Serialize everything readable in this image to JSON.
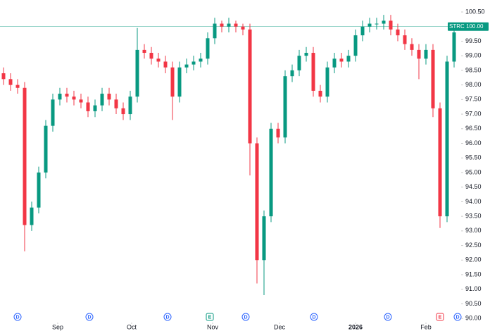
{
  "chart_data": {
    "type": "candlestick",
    "xlim": [
      -0.5,
      65
    ],
    "xticks": [
      {
        "value": 7.7,
        "label": "Sep"
      },
      {
        "value": 18.2,
        "label": "Oct"
      },
      {
        "value": 29.7,
        "label": "Nov"
      },
      {
        "value": 39.2,
        "label": "Dec"
      },
      {
        "value": 50,
        "label": "2026"
      },
      {
        "value": 60,
        "label": "Feb"
      }
    ],
    "x": [
      0,
      1,
      2,
      3,
      4,
      5,
      6,
      7,
      8,
      9,
      10,
      11,
      12,
      13,
      14,
      15,
      16,
      17,
      18,
      19,
      20,
      21,
      22,
      23,
      24,
      25,
      26,
      27,
      28,
      29,
      30,
      31,
      32,
      33,
      34,
      35,
      36,
      37,
      38,
      39,
      40,
      41,
      42,
      43,
      44,
      45,
      46,
      47,
      48,
      49,
      50,
      51,
      52,
      53,
      54,
      55,
      56,
      57,
      58,
      59,
      60,
      61,
      62,
      63,
      64
    ],
    "open": [
      98.4,
      98.2,
      98.0,
      97.9,
      93.2,
      93.8,
      95.0,
      96.6,
      97.5,
      97.7,
      97.6,
      97.5,
      97.4,
      97.1,
      97.3,
      97.7,
      97.5,
      97.2,
      97.0,
      97.6,
      99.2,
      99.1,
      98.9,
      98.8,
      98.6,
      97.6,
      98.6,
      98.7,
      98.8,
      98.9,
      99.6,
      100.1,
      100.0,
      100.1,
      100.0,
      99.9,
      96.0,
      92.0,
      93.5,
      96.5,
      96.2,
      98.3,
      98.5,
      99.0,
      99.1,
      97.8,
      97.6,
      98.6,
      98.9,
      98.8,
      99.0,
      99.7,
      100.0,
      100.1,
      100.1,
      100.2,
      99.9,
      99.7,
      99.4,
      99.2,
      98.9,
      99.2,
      97.2,
      93.5,
      98.8
    ],
    "high": [
      98.6,
      98.4,
      98.2,
      98.1,
      94.0,
      95.2,
      96.8,
      97.7,
      97.9,
      97.9,
      97.8,
      97.7,
      97.6,
      97.5,
      97.9,
      97.9,
      97.7,
      97.4,
      97.8,
      99.95,
      99.4,
      99.3,
      99.1,
      99.0,
      98.8,
      98.8,
      98.9,
      99.0,
      99.1,
      99.8,
      100.3,
      100.2,
      100.3,
      100.2,
      100.1,
      100.1,
      96.2,
      93.7,
      96.7,
      96.7,
      98.5,
      98.7,
      99.2,
      99.3,
      99.3,
      98.0,
      98.8,
      99.1,
      99.1,
      99.2,
      99.9,
      100.2,
      100.3,
      100.3,
      100.4,
      100.4,
      100.1,
      99.9,
      99.6,
      99.4,
      99.4,
      99.4,
      97.4,
      99.0,
      100.0
    ],
    "low": [
      98.0,
      97.8,
      97.7,
      92.3,
      93.0,
      93.6,
      94.8,
      96.4,
      97.3,
      97.4,
      97.3,
      97.2,
      96.9,
      96.9,
      97.1,
      97.3,
      97.0,
      96.8,
      96.8,
      97.4,
      98.9,
      98.7,
      98.6,
      98.4,
      96.8,
      97.4,
      98.4,
      98.5,
      98.6,
      98.7,
      99.4,
      99.8,
      99.8,
      99.8,
      99.7,
      94.9,
      91.2,
      90.8,
      93.3,
      96.0,
      96.0,
      98.1,
      98.3,
      98.8,
      97.6,
      97.4,
      97.4,
      98.4,
      98.6,
      98.6,
      98.8,
      99.5,
      99.8,
      99.9,
      99.9,
      99.7,
      99.5,
      99.2,
      99.0,
      98.2,
      98.7,
      96.9,
      93.1,
      93.3,
      98.6
    ],
    "close": [
      98.2,
      98.0,
      97.9,
      93.2,
      93.8,
      95.0,
      96.6,
      97.5,
      97.7,
      97.6,
      97.5,
      97.4,
      97.1,
      97.3,
      97.7,
      97.5,
      97.2,
      97.0,
      97.6,
      99.2,
      99.1,
      98.9,
      98.8,
      98.6,
      97.6,
      98.6,
      98.7,
      98.8,
      98.9,
      99.6,
      100.1,
      100.0,
      100.1,
      100.0,
      99.9,
      96.0,
      92.0,
      93.5,
      96.5,
      96.2,
      98.3,
      98.5,
      99.0,
      99.1,
      97.8,
      97.6,
      98.6,
      98.9,
      98.8,
      99.0,
      99.7,
      100.0,
      100.1,
      100.1,
      100.2,
      99.9,
      99.7,
      99.4,
      99.2,
      98.9,
      99.2,
      97.2,
      93.5,
      98.8,
      99.8
    ],
    "up_color": "#089981",
    "down_color": "#f23645",
    "ylim": [
      89.86,
      100.91
    ],
    "yticks": [
      {
        "value": 90,
        "label": "90.00"
      },
      {
        "value": 90.5,
        "label": "90.50"
      },
      {
        "value": 91,
        "label": "91.00"
      },
      {
        "value": 91.5,
        "label": "91.50"
      },
      {
        "value": 92,
        "label": "92.00"
      },
      {
        "value": 92.5,
        "label": "92.50"
      },
      {
        "value": 93,
        "label": "93.00"
      },
      {
        "value": 93.5,
        "label": "93.50"
      },
      {
        "value": 94,
        "label": "94.00"
      },
      {
        "value": 94.5,
        "label": "94.50"
      },
      {
        "value": 95,
        "label": "95.00"
      },
      {
        "value": 95.5,
        "label": "95.50"
      },
      {
        "value": 96,
        "label": "96.00"
      },
      {
        "value": 96.5,
        "label": "96.50"
      },
      {
        "value": 97,
        "label": "97.00"
      },
      {
        "value": 97.5,
        "label": "97.50"
      },
      {
        "value": 98,
        "label": "98.00"
      },
      {
        "value": 98.5,
        "label": "98.50"
      },
      {
        "value": 99,
        "label": "99.00"
      },
      {
        "value": 99.5,
        "label": "99.50"
      },
      {
        "value": 100,
        "label": "100.00"
      },
      {
        "value": 100.5,
        "label": "100.50"
      }
    ],
    "price_line": {
      "name": "STRC",
      "value": 100,
      "label": "100.00",
      "color": "#089981"
    },
    "events": [
      {
        "label": "D",
        "x": 2,
        "color": "#2962ff"
      },
      {
        "label": "D",
        "x": 12.2,
        "color": "#2962ff"
      },
      {
        "label": "D",
        "x": 23.3,
        "color": "#2962ff"
      },
      {
        "label": "E",
        "x": 29.3,
        "color": "#089981"
      },
      {
        "label": "D",
        "x": 34.4,
        "color": "#2962ff"
      },
      {
        "label": "D",
        "x": 44.1,
        "color": "#2962ff"
      },
      {
        "label": "D",
        "x": 54.6,
        "color": "#2962ff"
      },
      {
        "label": "E",
        "x": 62,
        "color": "#f23645"
      },
      {
        "label": "D",
        "x": 64.5,
        "color": "#2962ff"
      }
    ]
  }
}
